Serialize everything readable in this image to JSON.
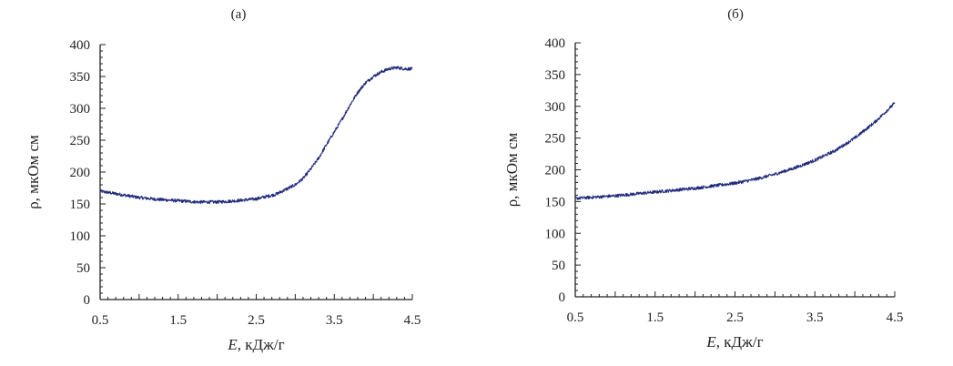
{
  "chart_data": [
    {
      "type": "line",
      "panel_label": "(а)",
      "xlabel_italic": "E",
      "xlabel_rest": ", кДж/г",
      "ylabel": "ρ, мкОм см",
      "xlim": [
        0.5,
        4.5
      ],
      "ylim": [
        0,
        400
      ],
      "x_ticks": [
        0.5,
        1.5,
        2.5,
        3.5,
        4.5
      ],
      "x_tick_labels": [
        "0.5",
        "1.5",
        "2.5",
        "3.5",
        "4.5"
      ],
      "y_ticks": [
        0,
        50,
        100,
        150,
        200,
        250,
        300,
        350,
        400
      ],
      "y_tick_labels": [
        "0",
        "50",
        "100",
        "150",
        "200",
        "250",
        "300",
        "350",
        "400"
      ],
      "grid": false,
      "line_color": "#1f2a7a",
      "series": [
        {
          "x": [
            0.5,
            0.75,
            1.0,
            1.25,
            1.5,
            1.75,
            2.0,
            2.25,
            2.5,
            2.75,
            3.0,
            3.1,
            3.2,
            3.3,
            3.4,
            3.5,
            3.6,
            3.7,
            3.8,
            3.9,
            4.0,
            4.1,
            4.2,
            4.3,
            4.4,
            4.5
          ],
          "y": [
            170,
            165,
            160,
            157,
            155,
            153,
            153,
            155,
            158,
            165,
            180,
            190,
            205,
            222,
            243,
            263,
            283,
            305,
            325,
            340,
            350,
            357,
            362,
            364,
            362,
            362
          ]
        }
      ]
    },
    {
      "type": "line",
      "panel_label": "(б)",
      "xlabel_italic": "E",
      "xlabel_rest": ", кДж/г",
      "ylabel": "ρ, мкОм см",
      "xlim": [
        0.5,
        4.5
      ],
      "ylim": [
        0,
        400
      ],
      "x_ticks": [
        0.5,
        1.5,
        2.5,
        3.5,
        4.5
      ],
      "x_tick_labels": [
        "0.5",
        "1.5",
        "2.5",
        "3.5",
        "4.5"
      ],
      "y_ticks": [
        0,
        50,
        100,
        150,
        200,
        250,
        300,
        350,
        400
      ],
      "y_tick_labels": [
        "0",
        "50",
        "100",
        "150",
        "200",
        "250",
        "300",
        "350",
        "400"
      ],
      "grid": false,
      "line_color": "#1f2a7a",
      "series": [
        {
          "x": [
            0.5,
            0.75,
            1.0,
            1.25,
            1.5,
            1.75,
            2.0,
            2.25,
            2.5,
            2.75,
            3.0,
            3.25,
            3.5,
            3.75,
            4.0,
            4.25,
            4.5
          ],
          "y": [
            155,
            157,
            159,
            162,
            165,
            168,
            171,
            175,
            179,
            185,
            193,
            203,
            215,
            230,
            250,
            275,
            305
          ]
        }
      ]
    }
  ]
}
